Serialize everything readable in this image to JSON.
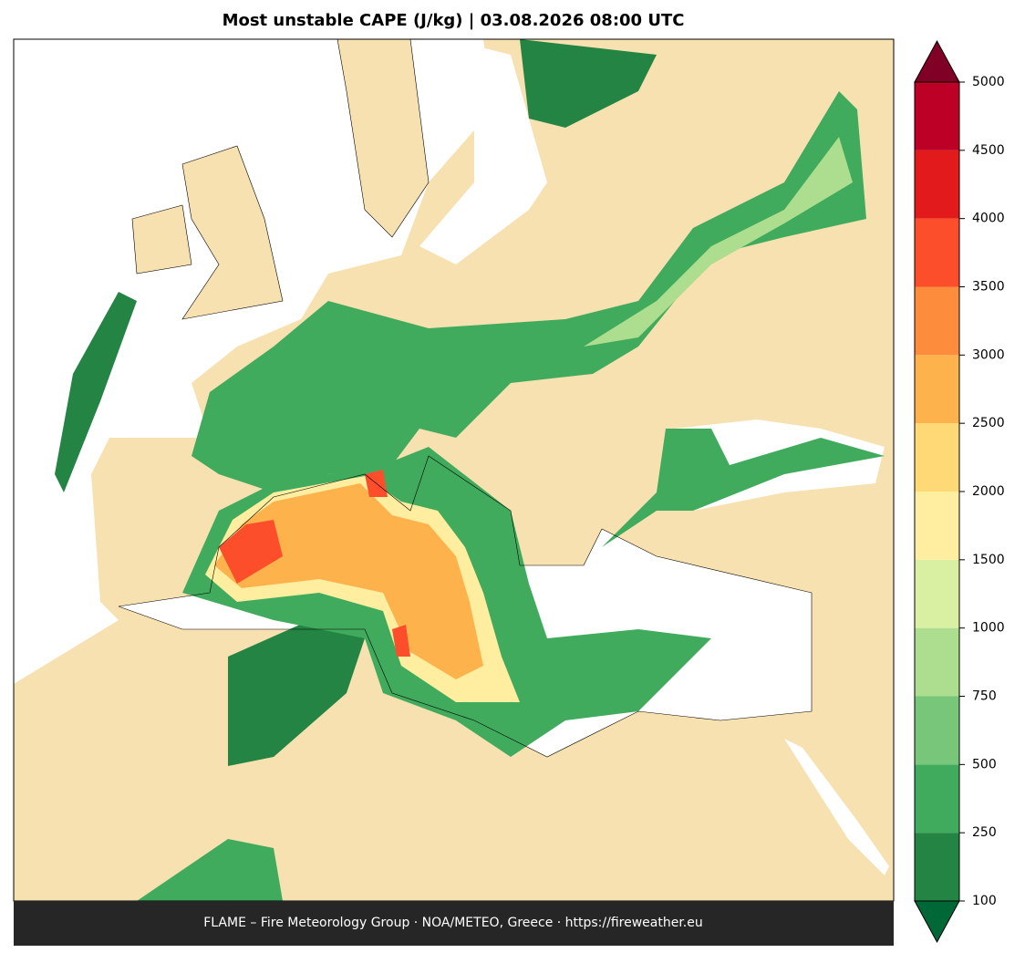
{
  "header": {
    "title": "Most unstable CAPE (J/kg)  |  03.08.2026 08:00 UTC"
  },
  "footer": {
    "credit": "FLAME – Fire Meteorology Group · NOA/METEO, Greece · https://fireweather.eu"
  },
  "colorbar": {
    "levels": [
      100,
      250,
      500,
      750,
      1000,
      1500,
      2000,
      2500,
      3000,
      3500,
      4000,
      4500,
      5000
    ],
    "colors": [
      "#238443",
      "#41ab5d",
      "#78c679",
      "#addd8e",
      "#d9f0a3",
      "#ffeda0",
      "#fed976",
      "#feb24c",
      "#fd8d3c",
      "#fc4e2a",
      "#e31a1c",
      "#bd0026"
    ],
    "under_color": "#006837",
    "over_color": "#800026"
  }
}
